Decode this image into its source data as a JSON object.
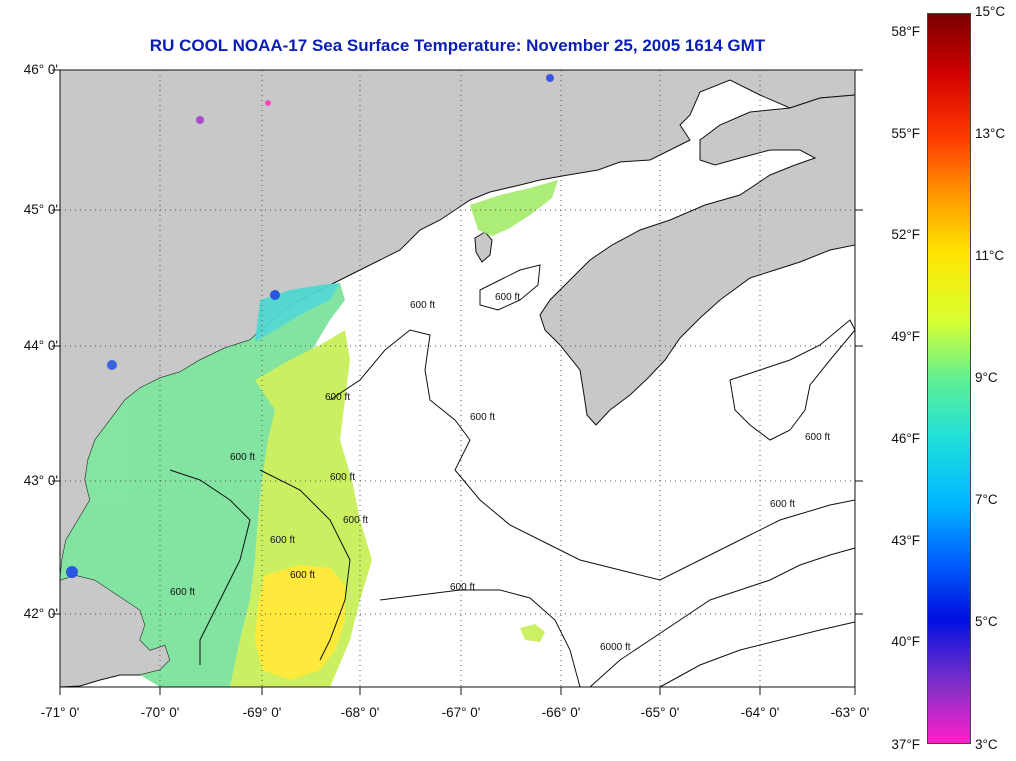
{
  "title": "RU COOL  NOAA-17  Sea Surface Temperature:  November 25, 2005 1614 GMT",
  "latitude_labels": [
    "46° 0'",
    "45° 0'",
    "44° 0'",
    "43° 0'",
    "42° 0'"
  ],
  "longitude_labels": [
    "-71° 0'",
    "-70° 0'",
    "-69° 0'",
    "-68° 0'",
    "-67° 0'",
    "-66° 0'",
    "-65° 0'",
    "-64° 0'",
    "-63° 0'"
  ],
  "colorbar": {
    "fahrenheit_labels": [
      "58°F",
      "55°F",
      "52°F",
      "49°F",
      "46°F",
      "43°F",
      "40°F",
      "37°F"
    ],
    "celsius_labels": [
      "15°C",
      "13°C",
      "11°C",
      "9°C",
      "7°C",
      "5°C",
      "3°C"
    ],
    "colors": [
      "#7a0000",
      "#d00000",
      "#ff3a00",
      "#ff9a00",
      "#ffe600",
      "#d8ff30",
      "#60f090",
      "#20e0d8",
      "#00b8ff",
      "#0060ff",
      "#0010e0",
      "#8030c8",
      "#ff20c8"
    ]
  },
  "contour_labels": [
    "600 ft",
    "600 ft",
    "600 ft",
    "600 ft",
    "600 ft",
    "600 ft",
    "600 ft",
    "600 ft",
    "600 ft",
    "600 ft",
    "600 ft",
    "600 ft",
    "600 ft",
    "6000 ft"
  ],
  "colors": {
    "land": "#c8c8c8",
    "ocean_nodata": "#ffffff",
    "title": "#0a1eb4"
  }
}
